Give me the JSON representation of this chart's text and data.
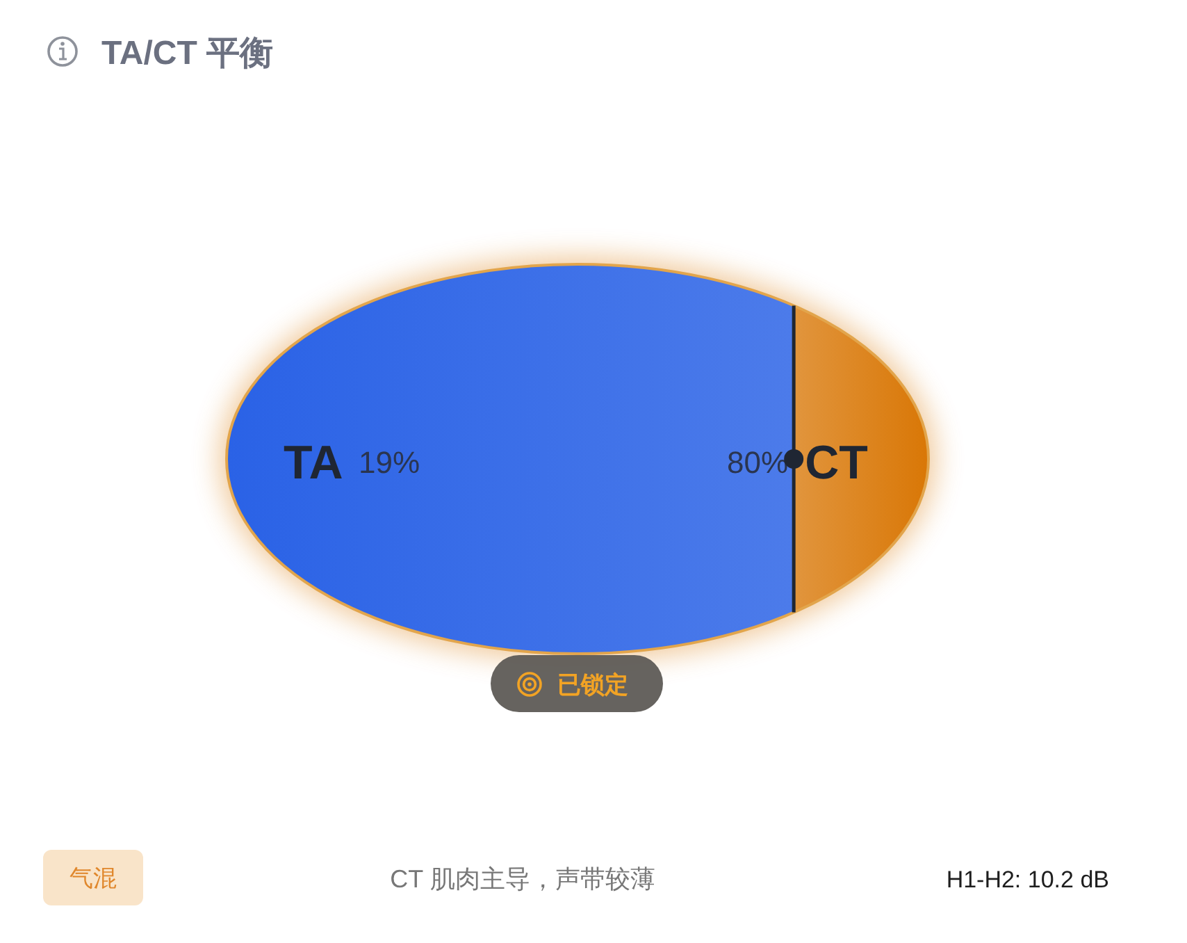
{
  "chart_data": {
    "type": "other",
    "title": "TA/CT 平衡",
    "categories": [
      "TA",
      "CT"
    ],
    "values": [
      19,
      80
    ],
    "value_labels": [
      "19%",
      "80%"
    ],
    "colors": [
      "#2a62e6",
      "#d97706"
    ],
    "annotations": [
      "已锁定",
      "气混",
      "CT 肌肉主导，声带较薄",
      "H1-H2: 10.2 dB"
    ]
  }
}
